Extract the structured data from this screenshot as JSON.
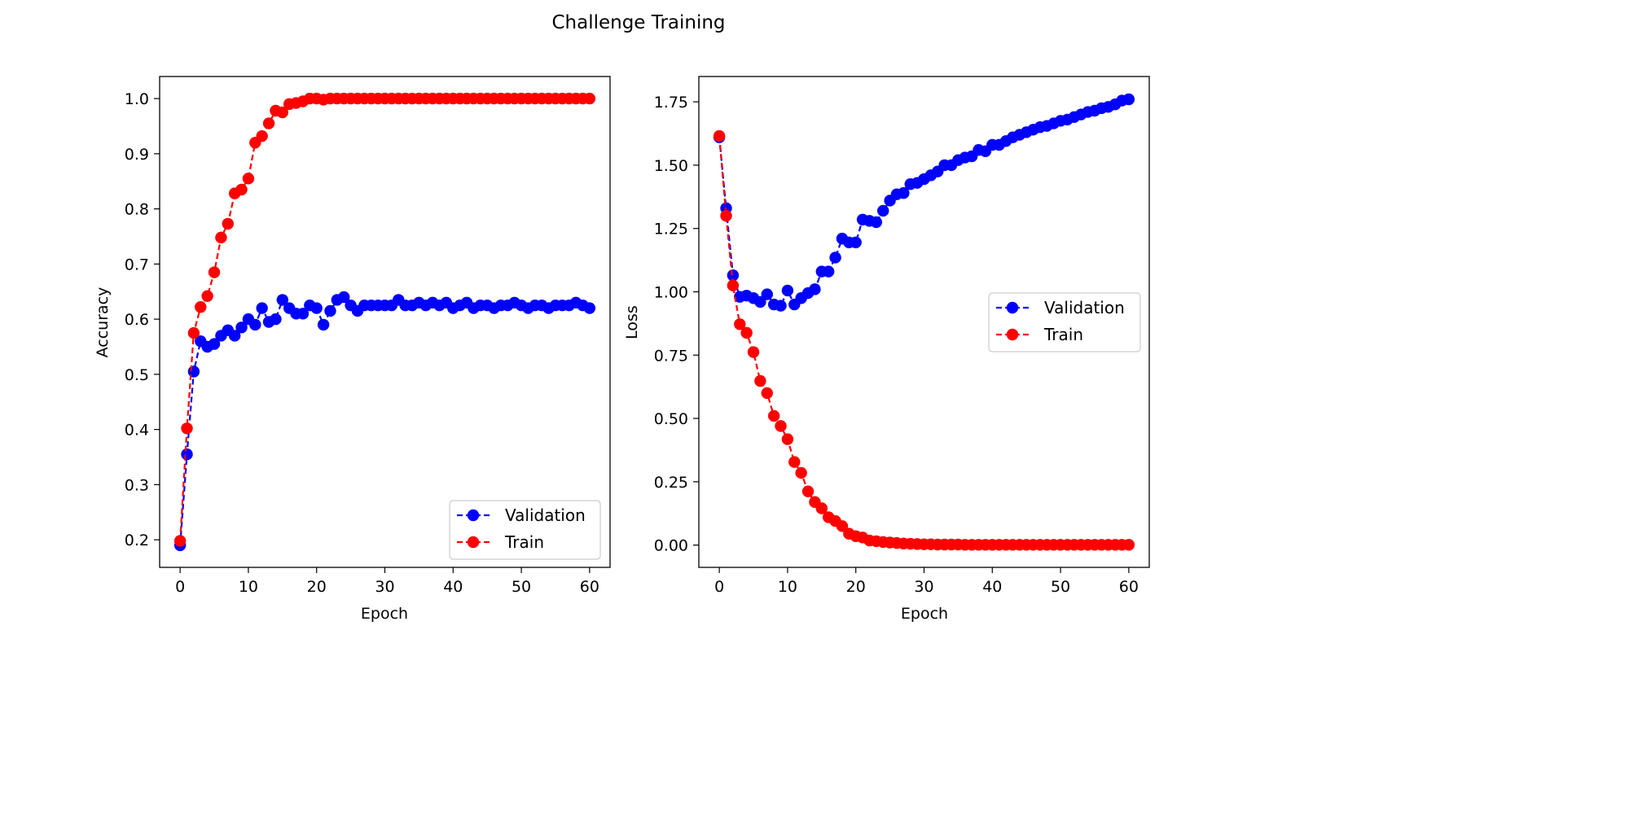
{
  "figure": {
    "suptitle": "Challenge Training"
  },
  "chart_data": [
    {
      "type": "line",
      "title": "",
      "xlabel": "Epoch",
      "ylabel": "Accuracy",
      "xlim": [
        -3,
        63
      ],
      "ylim": [
        0.15,
        1.04
      ],
      "xticks": [
        0,
        10,
        20,
        30,
        40,
        50,
        60
      ],
      "yticks": [
        0.2,
        0.3,
        0.4,
        0.5,
        0.6,
        0.7,
        0.8,
        0.9,
        1.0
      ],
      "ytick_labels": [
        "0.2",
        "0.3",
        "0.4",
        "0.5",
        "0.6",
        "0.7",
        "0.8",
        "0.9",
        "1.0"
      ],
      "legend": "lower right",
      "x": [
        0,
        1,
        2,
        3,
        4,
        5,
        6,
        7,
        8,
        9,
        10,
        11,
        12,
        13,
        14,
        15,
        16,
        17,
        18,
        19,
        20,
        21,
        22,
        23,
        24,
        25,
        26,
        27,
        28,
        29,
        30,
        31,
        32,
        33,
        34,
        35,
        36,
        37,
        38,
        39,
        40,
        41,
        42,
        43,
        44,
        45,
        46,
        47,
        48,
        49,
        50,
        51,
        52,
        53,
        54,
        55,
        56,
        57,
        58,
        59,
        60
      ],
      "series": [
        {
          "name": "Validation",
          "color": "#0000ff",
          "style": "dashed-circle",
          "values": [
            0.19,
            0.355,
            0.505,
            0.56,
            0.55,
            0.555,
            0.57,
            0.58,
            0.57,
            0.585,
            0.6,
            0.59,
            0.62,
            0.595,
            0.6,
            0.635,
            0.62,
            0.61,
            0.61,
            0.625,
            0.62,
            0.59,
            0.615,
            0.635,
            0.64,
            0.625,
            0.615,
            0.625,
            0.625,
            0.625,
            0.625,
            0.625,
            0.635,
            0.625,
            0.625,
            0.63,
            0.625,
            0.63,
            0.625,
            0.63,
            0.62,
            0.625,
            0.63,
            0.62,
            0.625,
            0.625,
            0.62,
            0.625,
            0.625,
            0.63,
            0.625,
            0.62,
            0.625,
            0.625,
            0.62,
            0.625,
            0.625,
            0.625,
            0.63,
            0.625,
            0.62
          ]
        },
        {
          "name": "Train",
          "color": "#ff0000",
          "style": "dashed-circle",
          "values": [
            0.198,
            0.402,
            0.575,
            0.622,
            0.642,
            0.685,
            0.748,
            0.773,
            0.828,
            0.835,
            0.855,
            0.92,
            0.932,
            0.955,
            0.978,
            0.975,
            0.99,
            0.992,
            0.995,
            1.0,
            1.0,
            0.998,
            1.0,
            1.0,
            1.0,
            1.0,
            1.0,
            1.0,
            1.0,
            1.0,
            1.0,
            1.0,
            1.0,
            1.0,
            1.0,
            1.0,
            1.0,
            1.0,
            1.0,
            1.0,
            1.0,
            1.0,
            1.0,
            1.0,
            1.0,
            1.0,
            1.0,
            1.0,
            1.0,
            1.0,
            1.0,
            1.0,
            1.0,
            1.0,
            1.0,
            1.0,
            1.0,
            1.0,
            1.0,
            1.0,
            1.0
          ]
        }
      ]
    },
    {
      "type": "line",
      "title": "",
      "xlabel": "Epoch",
      "ylabel": "Loss",
      "xlim": [
        -3,
        63
      ],
      "ylim": [
        -0.088,
        1.85
      ],
      "xticks": [
        0,
        10,
        20,
        30,
        40,
        50,
        60
      ],
      "yticks": [
        0.0,
        0.25,
        0.5,
        0.75,
        1.0,
        1.25,
        1.5,
        1.75
      ],
      "ytick_labels": [
        "0.00",
        "0.25",
        "0.50",
        "0.75",
        "1.00",
        "1.25",
        "1.50",
        "1.75"
      ],
      "legend": "center right",
      "x": [
        0,
        1,
        2,
        3,
        4,
        5,
        6,
        7,
        8,
        9,
        10,
        11,
        12,
        13,
        14,
        15,
        16,
        17,
        18,
        19,
        20,
        21,
        22,
        23,
        24,
        25,
        26,
        27,
        28,
        29,
        30,
        31,
        32,
        33,
        34,
        35,
        36,
        37,
        38,
        39,
        40,
        41,
        42,
        43,
        44,
        45,
        46,
        47,
        48,
        49,
        50,
        51,
        52,
        53,
        54,
        55,
        56,
        57,
        58,
        59,
        60
      ],
      "series": [
        {
          "name": "Validation",
          "color": "#0000ff",
          "style": "dashed-circle",
          "values": [
            1.61,
            1.33,
            1.065,
            0.98,
            0.985,
            0.975,
            0.96,
            0.99,
            0.95,
            0.945,
            1.005,
            0.95,
            0.975,
            0.995,
            1.01,
            1.08,
            1.08,
            1.135,
            1.21,
            1.195,
            1.195,
            1.285,
            1.28,
            1.275,
            1.32,
            1.36,
            1.385,
            1.39,
            1.425,
            1.43,
            1.445,
            1.46,
            1.475,
            1.5,
            1.5,
            1.52,
            1.53,
            1.535,
            1.56,
            1.555,
            1.58,
            1.58,
            1.595,
            1.61,
            1.62,
            1.63,
            1.64,
            1.65,
            1.655,
            1.665,
            1.675,
            1.68,
            1.69,
            1.7,
            1.71,
            1.715,
            1.725,
            1.73,
            1.74,
            1.755,
            1.76
          ]
        },
        {
          "name": "Train",
          "color": "#ff0000",
          "style": "dashed-circle",
          "values": [
            1.615,
            1.3,
            1.025,
            0.872,
            0.838,
            0.762,
            0.648,
            0.6,
            0.51,
            0.47,
            0.418,
            0.328,
            0.285,
            0.212,
            0.17,
            0.145,
            0.11,
            0.095,
            0.075,
            0.045,
            0.035,
            0.03,
            0.018,
            0.015,
            0.012,
            0.01,
            0.008,
            0.006,
            0.005,
            0.004,
            0.003,
            0.003,
            0.002,
            0.002,
            0.002,
            0.002,
            0.001,
            0.001,
            0.001,
            0.001,
            0.001,
            0.001,
            0.001,
            0.001,
            0.001,
            0.001,
            0.001,
            0.001,
            0.001,
            0.001,
            0.001,
            0.001,
            0.001,
            0.001,
            0.001,
            0.001,
            0.001,
            0.001,
            0.001,
            0.001,
            0.001
          ]
        }
      ]
    }
  ]
}
